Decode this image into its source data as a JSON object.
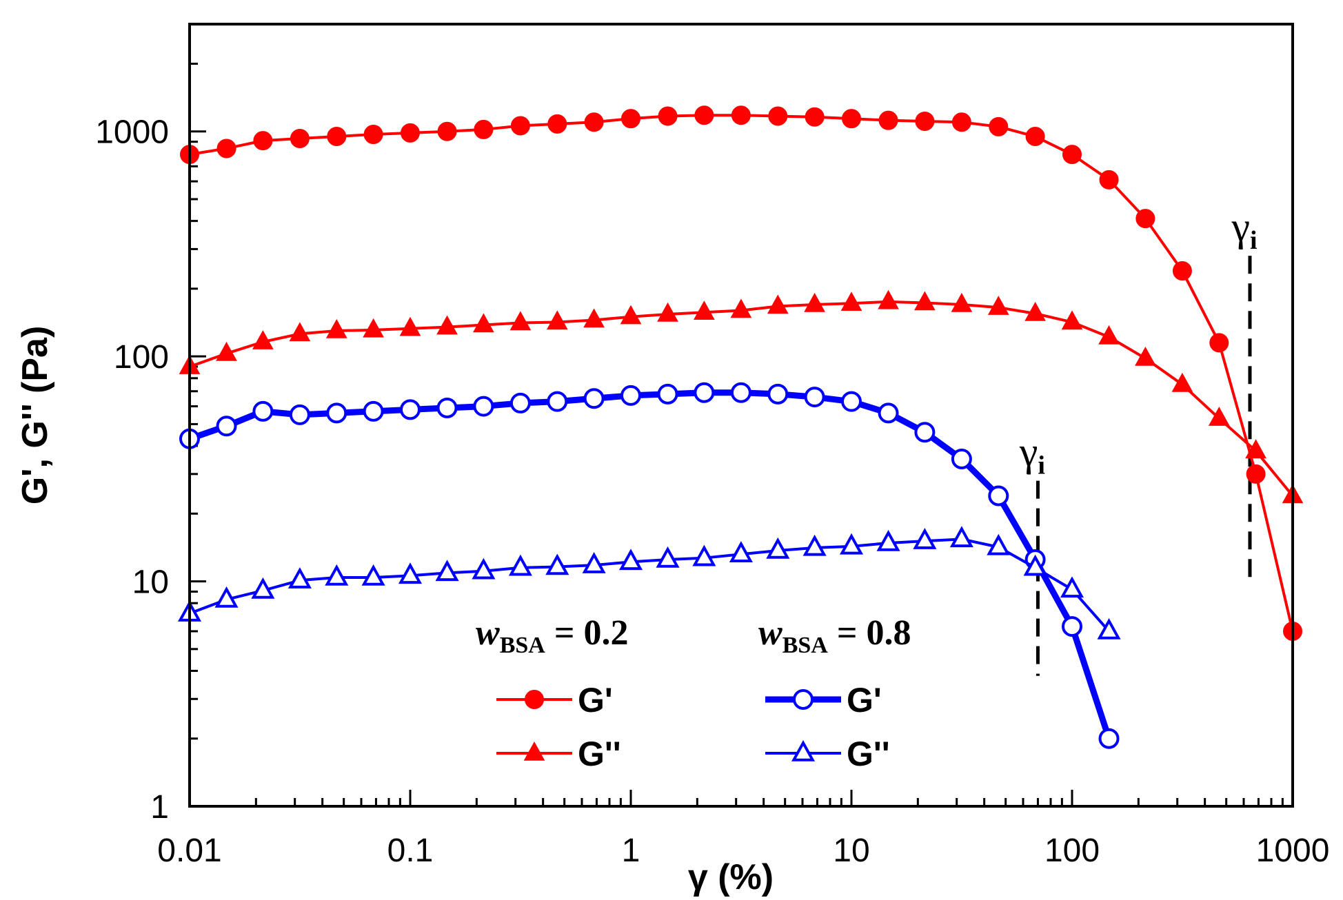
{
  "chart_data": {
    "type": "line",
    "title": "",
    "xlabel": "γ (%)",
    "ylabel": "G', G'' (Pa)",
    "xscale": "log",
    "yscale": "log",
    "xlim": [
      0.01,
      1000
    ],
    "ylim": [
      1,
      3000
    ],
    "x_ticks": [
      0.01,
      0.1,
      1,
      10,
      100,
      1000
    ],
    "x_tick_labels": [
      "0.01",
      "0.1",
      "1",
      "10",
      "100",
      "1000"
    ],
    "y_ticks": [
      1,
      10,
      100,
      1000
    ],
    "y_tick_labels": [
      "1",
      "10",
      "100",
      "1000"
    ],
    "series": [
      {
        "name": "G'",
        "group": "w_BSA = 0.2",
        "color": "#ff0000",
        "marker": "filled-circle",
        "line": "thin",
        "x": [
          0.01,
          0.0147,
          0.0215,
          0.0316,
          0.0464,
          0.0681,
          0.1,
          0.147,
          0.215,
          0.316,
          0.464,
          0.681,
          1,
          1.47,
          2.15,
          3.16,
          4.64,
          6.81,
          10,
          14.7,
          21.5,
          31.6,
          46.4,
          68.1,
          100,
          147,
          215,
          316,
          464,
          681,
          1000
        ],
        "values": [
          790,
          840,
          910,
          930,
          950,
          970,
          985,
          1000,
          1020,
          1060,
          1080,
          1100,
          1140,
          1170,
          1180,
          1180,
          1170,
          1160,
          1140,
          1120,
          1110,
          1100,
          1050,
          950,
          790,
          610,
          410,
          240,
          115,
          30,
          6
        ]
      },
      {
        "name": "G''",
        "group": "w_BSA = 0.2",
        "color": "#ff0000",
        "marker": "filled-triangle",
        "line": "thin",
        "x": [
          0.01,
          0.0147,
          0.0215,
          0.0316,
          0.0464,
          0.0681,
          0.1,
          0.147,
          0.215,
          0.316,
          0.464,
          0.681,
          1,
          1.47,
          2.15,
          3.16,
          4.64,
          6.81,
          10,
          14.7,
          21.5,
          31.6,
          46.4,
          68.1,
          100,
          147,
          215,
          316,
          464,
          681,
          1000
        ],
        "values": [
          90,
          103,
          116,
          126,
          130,
          131,
          133,
          135,
          138,
          141,
          142,
          145,
          150,
          154,
          157,
          160,
          167,
          170,
          172,
          175,
          173,
          170,
          165,
          155,
          142,
          122,
          98,
          75,
          53,
          38,
          24
        ]
      },
      {
        "name": "G'",
        "group": "w_BSA = 0.8",
        "color": "#0000ff",
        "marker": "open-circle",
        "line": "thick",
        "x": [
          0.01,
          0.0147,
          0.0215,
          0.0316,
          0.0464,
          0.0681,
          0.1,
          0.147,
          0.215,
          0.316,
          0.464,
          0.681,
          1,
          1.47,
          2.15,
          3.16,
          4.64,
          6.81,
          10,
          14.7,
          21.5,
          31.6,
          46.4,
          68.1,
          100,
          147
        ],
        "values": [
          43,
          49,
          57,
          55,
          56,
          57,
          58,
          59,
          60,
          62,
          63,
          65,
          67,
          68,
          69,
          69,
          68,
          66,
          63,
          56,
          46,
          35,
          24,
          12.5,
          6.3,
          2
        ]
      },
      {
        "name": "G''",
        "group": "w_BSA = 0.8",
        "color": "#0000ff",
        "marker": "open-triangle",
        "line": "thin",
        "x": [
          0.01,
          0.0147,
          0.0215,
          0.0316,
          0.0464,
          0.0681,
          0.1,
          0.147,
          0.215,
          0.316,
          0.464,
          0.681,
          1,
          1.47,
          2.15,
          3.16,
          4.64,
          6.81,
          10,
          14.7,
          21.5,
          31.6,
          46.4,
          68.1,
          100,
          147
        ],
        "values": [
          7.2,
          8.3,
          9.1,
          10.1,
          10.4,
          10.4,
          10.6,
          10.9,
          11.1,
          11.5,
          11.6,
          11.8,
          12.2,
          12.5,
          12.7,
          13.2,
          13.7,
          14.1,
          14.3,
          14.8,
          15.1,
          15.4,
          14.2,
          11.5,
          9.2,
          6
        ]
      }
    ],
    "annotations": [
      {
        "text": "γ",
        "subscript": "i",
        "x": 70,
        "y_top": 28,
        "y_bottom": 3.8,
        "color": "#000000"
      },
      {
        "text": "γ",
        "subscript": "i",
        "x": 640,
        "y_top": 280,
        "y_bottom": 9.5,
        "color": "#000000"
      }
    ],
    "legend": {
      "placement": "bottom-center",
      "groups": [
        {
          "prefix": "w",
          "subscript": "BSA",
          "value_text": " = 0.2"
        },
        {
          "prefix": "w",
          "subscript": "BSA",
          "value_text": " = 0.8"
        }
      ],
      "entries": [
        {
          "label": "G'",
          "series": 0
        },
        {
          "label": "G''",
          "series": 1
        },
        {
          "label": "G'",
          "series": 2
        },
        {
          "label": "G''",
          "series": 3
        }
      ]
    }
  }
}
